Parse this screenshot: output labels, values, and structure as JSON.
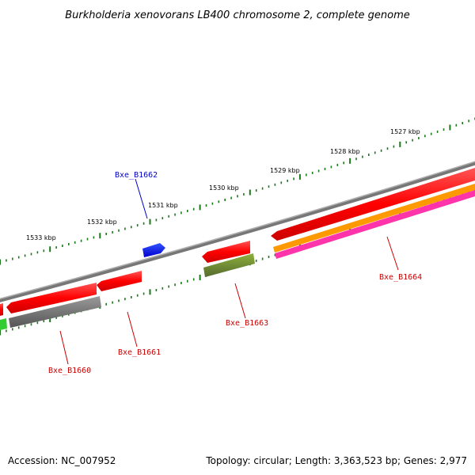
{
  "title": "Burkholderia xenovorans LB400 chromosome 2, complete genome",
  "footer": {
    "accession": "Accession: NC_007952",
    "topology": "Topology: circular; Length: 3,363,523 bp; Genes: 2,977"
  },
  "kbp_labels": [
    "1527 kbp",
    "1528 kbp",
    "1529 kbp",
    "1530 kbp",
    "1531 kbp",
    "1532 kbp",
    "1533 kbp"
  ],
  "gene_labels": [
    {
      "name": "Bxe_B1662",
      "color": "#0000cc"
    },
    {
      "name": "Bxe_B1661",
      "color": "#cc0000"
    },
    {
      "name": "Bxe_B1660",
      "color": "#cc0000"
    },
    {
      "name": "Bxe_B1663",
      "color": "#cc0000"
    },
    {
      "name": "Bxe_B1664",
      "color": "#cc0000"
    }
  ],
  "colors": {
    "backbone": "#808080",
    "tick": "#1a7a1a",
    "gene_red": "#ff0000",
    "gene_blue": "#0000ff",
    "gene_gray": "#6e6e6e",
    "gene_olive": "#6b8e23",
    "gene_orange": "#ff9900",
    "gene_magenta": "#ff33aa",
    "gene_green": "#33cc33"
  }
}
